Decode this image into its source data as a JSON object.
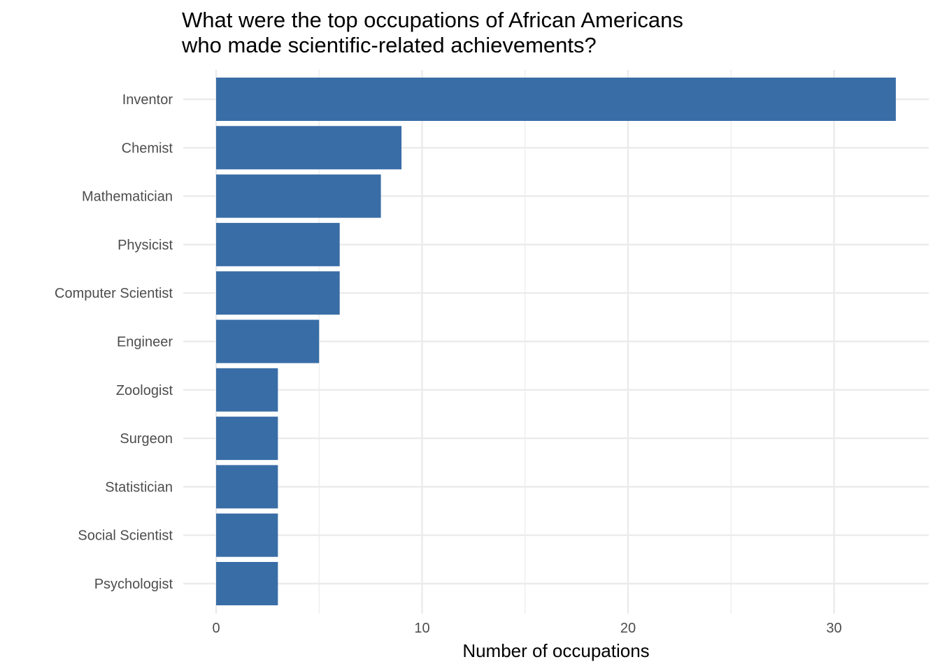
{
  "chart_data": {
    "type": "bar",
    "orientation": "horizontal",
    "title": [
      "What were the top occupations of African Americans",
      "who made scientific-related achievements?"
    ],
    "xlabel": "Number of occupations",
    "ylabel": "",
    "categories": [
      "Inventor",
      "Chemist",
      "Mathematician",
      "Physicist",
      "Computer Scientist",
      "Engineer",
      "Zoologist",
      "Surgeon",
      "Statistician",
      "Social Scientist",
      "Psychologist"
    ],
    "values": [
      33,
      9,
      8,
      6,
      6,
      5,
      3,
      3,
      3,
      3,
      3
    ],
    "xlim": [
      0,
      34.6
    ],
    "xticks": [
      0,
      10,
      20,
      30
    ],
    "grid": true,
    "bar_color": "#396DA6",
    "grid_color": "#EBEBEB"
  }
}
